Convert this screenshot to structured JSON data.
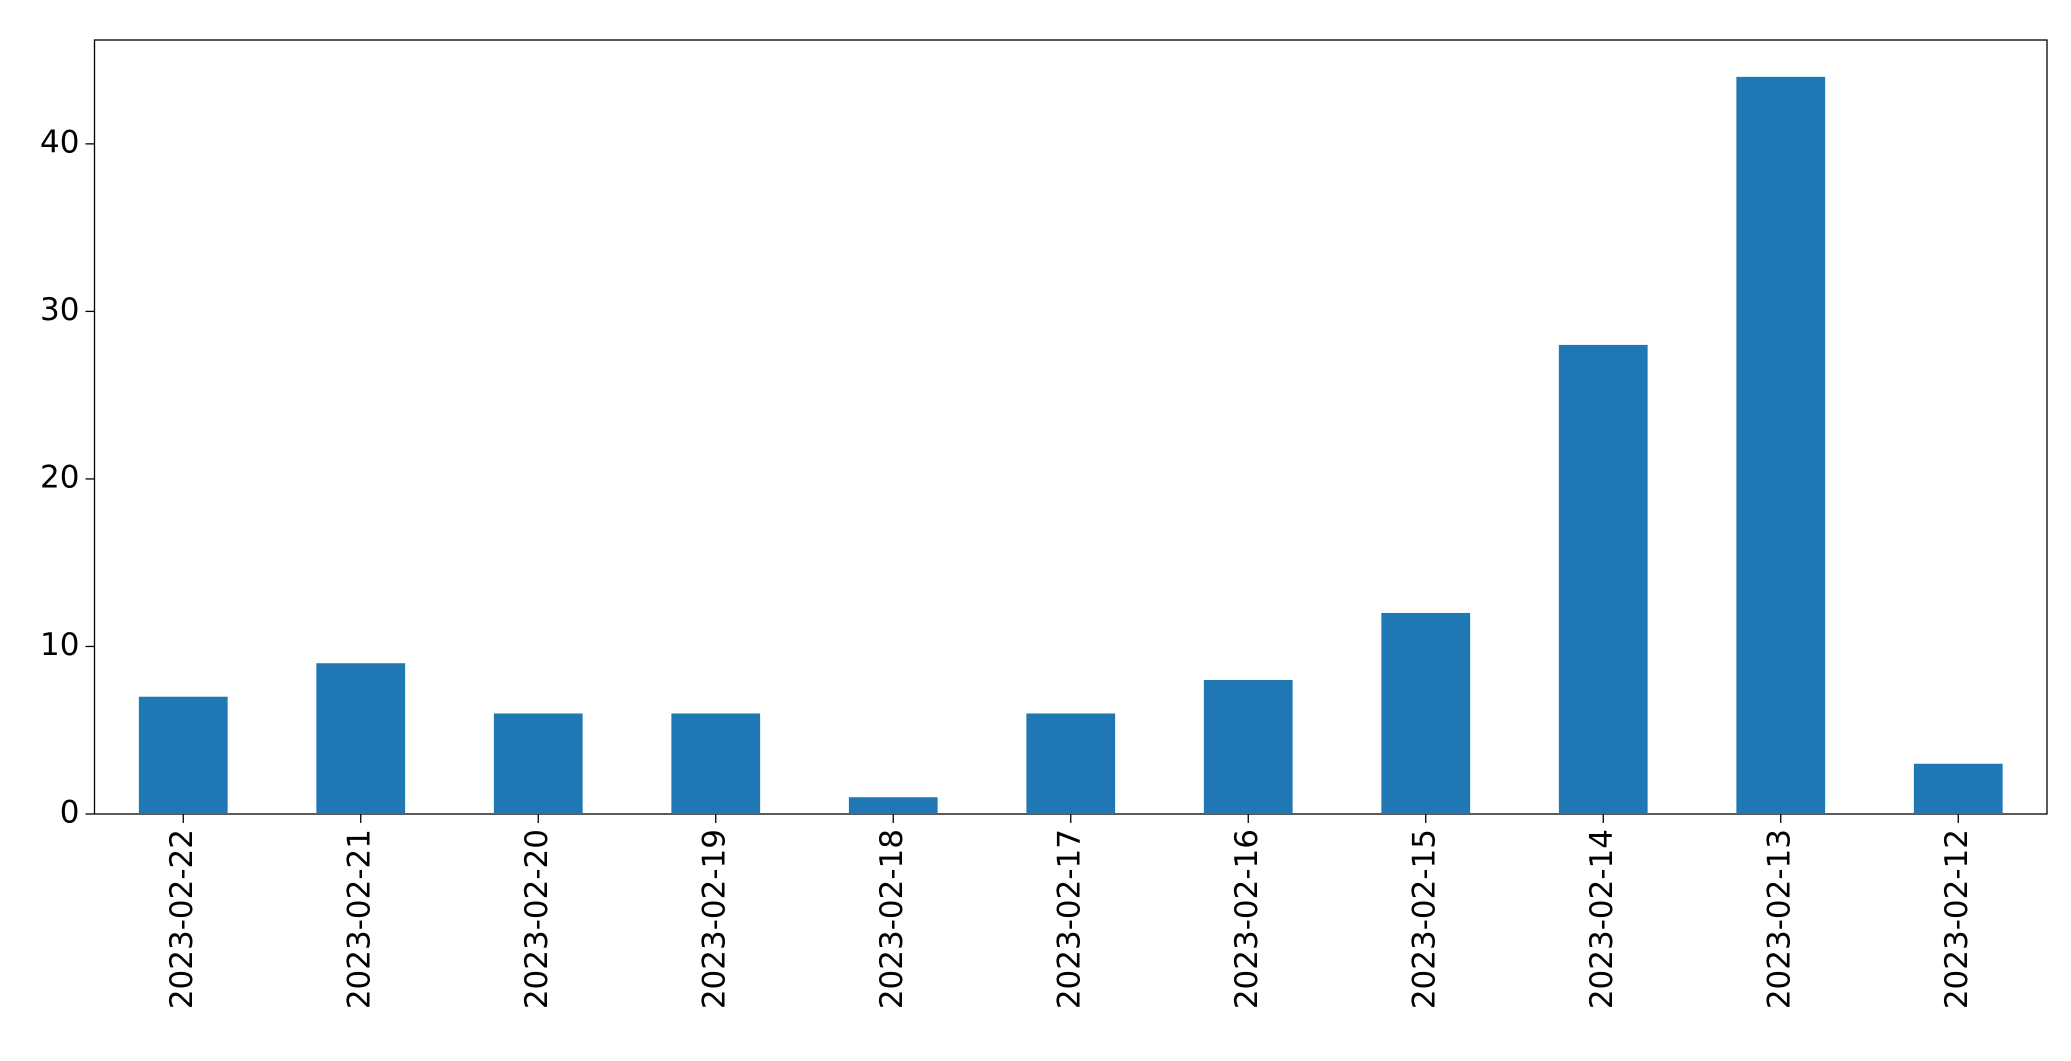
{
  "chart_data": {
    "type": "bar",
    "categories": [
      "2023-02-22",
      "2023-02-21",
      "2023-02-20",
      "2023-02-19",
      "2023-02-18",
      "2023-02-17",
      "2023-02-16",
      "2023-02-15",
      "2023-02-14",
      "2023-02-13",
      "2023-02-12"
    ],
    "values": [
      7,
      9,
      6,
      6,
      1,
      6,
      8,
      12,
      28,
      44,
      3
    ],
    "color": "#1f77b4",
    "ylim": [
      0,
      46.2
    ],
    "yticks": [
      0,
      10,
      20,
      30,
      40
    ],
    "grid": false
  }
}
